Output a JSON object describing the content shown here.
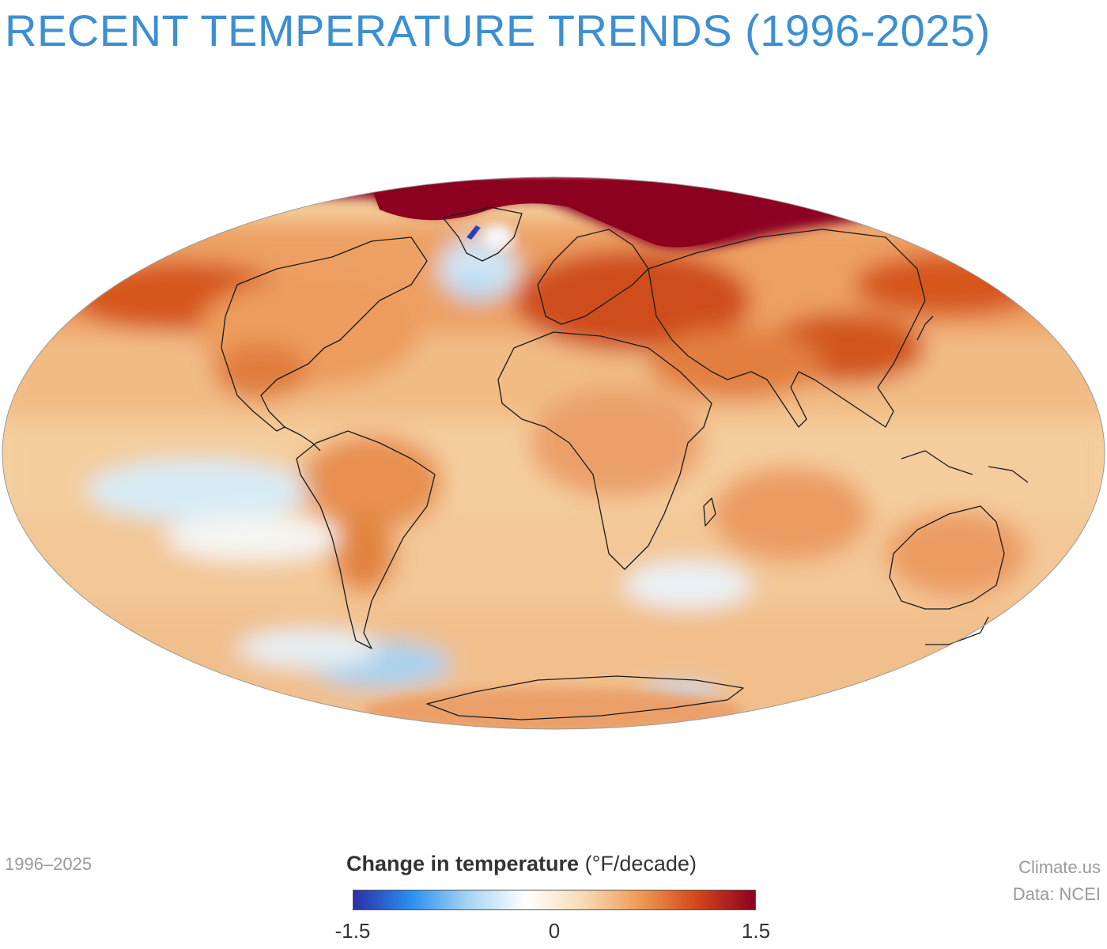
{
  "title": "RECENT TEMPERATURE TRENDS (1996-2025)",
  "period_label": "1996–2025",
  "source": {
    "site": "Climate.us",
    "data": "Data: NCEI"
  },
  "legend": {
    "title_bold": "Change in temperature",
    "title_unit": "(°F/decade)",
    "ticks": [
      "-1.5",
      "0",
      "1.5"
    ],
    "min": -1.5,
    "max": 1.5,
    "colors": [
      "#2b2fa8",
      "#2a8ff0",
      "#a7d4f2",
      "#ffffff",
      "#f7dbb6",
      "#ee9a55",
      "#d3451a",
      "#8c0020"
    ]
  },
  "map": {
    "projection": "Hammer / Aitoff (global equal-area)",
    "hotspots": [
      {
        "name": "Arctic",
        "trend": 1.5
      },
      {
        "name": "Northern Europe",
        "trend": 1.1
      },
      {
        "name": "East Asia",
        "trend": 1.0
      },
      {
        "name": "North Pacific",
        "trend": 1.0
      },
      {
        "name": "North Atlantic (south of Greenland)",
        "trend": -0.4
      },
      {
        "name": "Southeast Pacific",
        "trend": -0.3
      },
      {
        "name": "Southern Ocean",
        "trend": -0.4
      }
    ]
  }
}
